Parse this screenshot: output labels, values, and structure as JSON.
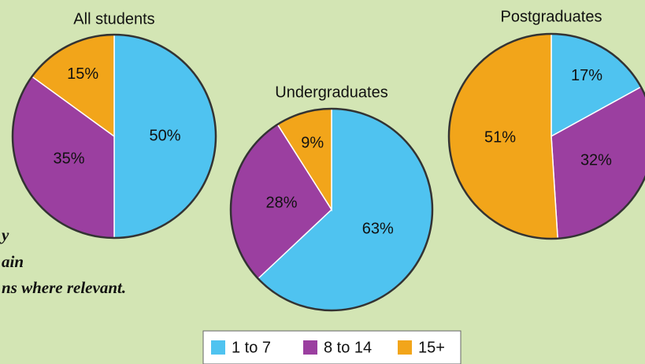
{
  "chart_data": [
    {
      "type": "pie",
      "title": "All students",
      "values": [
        50,
        35,
        15
      ],
      "value_labels": [
        "50%",
        "35%",
        "15%"
      ]
    },
    {
      "type": "pie",
      "title": "Undergraduates",
      "values": [
        63,
        28,
        9
      ],
      "value_labels": [
        "63%",
        "28%",
        "9%"
      ]
    },
    {
      "type": "pie",
      "title": "Postgraduates",
      "values": [
        17,
        32,
        51
      ],
      "value_labels": [
        "17%",
        "32%",
        "51%"
      ]
    }
  ],
  "legend": {
    "categories": [
      "1 to 7",
      "8 to 14",
      "15+"
    ],
    "colors": [
      "#4fc3f0",
      "#9b3fa0",
      "#f2a51a"
    ]
  },
  "side_text": [
    "y",
    "ain",
    "ns where relevant."
  ]
}
